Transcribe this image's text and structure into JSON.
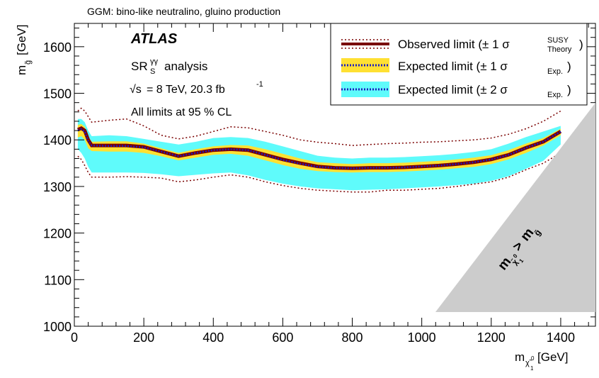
{
  "chart_data": {
    "type": "line",
    "title": "GGM: bino-like neutralino, gluino production",
    "xlabel": "m",
    "xlabel_sub": "χ̃",
    "xlabel_sub_sup": "0",
    "xlabel_sub_sub": "1",
    "xunit": "[GeV]",
    "ylabel": "m",
    "ylabel_sub": "g̃",
    "yunit": "[GeV]",
    "xlim": [
      0,
      1500
    ],
    "ylim": [
      1000,
      1650
    ],
    "xticks": [
      0,
      200,
      400,
      600,
      800,
      1000,
      1200,
      1400
    ],
    "yticks": [
      1000,
      1100,
      1200,
      1300,
      1400,
      1500,
      1600
    ],
    "annotations": {
      "experiment": "ATLAS",
      "analysis_base": "SR",
      "analysis_sup": "γγ",
      "analysis_sub": "S",
      "analysis_rest": "analysis",
      "sqrt": "√s",
      "energy": "= 8 TeV, 20.3 fb",
      "lumi_sup": "-1",
      "cl": "All limits at 95 % CL",
      "excluded_region_main": "m",
      "excluded_region_sub": "χ̃",
      "excluded_region_sub_sup": "0",
      "excluded_region_sub_sub": "1",
      "excluded_region_op": ">",
      "excluded_region_rhs": "m",
      "excluded_region_rhs_sub": "g̃"
    },
    "legend": {
      "placement": "top-right",
      "entries": [
        {
          "text": "Observed limit (± 1 σ",
          "sup": "SUSY",
          "sub": "Theory",
          "close": ")"
        },
        {
          "text": "Expected limit (± 1 σ",
          "sub": "Exp.",
          "close": ")"
        },
        {
          "text": "Expected limit (± 2 σ",
          "sub": "Exp.",
          "close": ")"
        }
      ]
    },
    "colors": {
      "observed": "#7a0000",
      "expected_line": "#1c1cbf",
      "band_1sigma": "#ffe033",
      "band_2sigma": "#5ffbfb",
      "excluded": "#cccccc"
    },
    "x": [
      10,
      20,
      30,
      40,
      50,
      100,
      150,
      200,
      250,
      300,
      350,
      400,
      450,
      500,
      550,
      600,
      650,
      700,
      750,
      800,
      850,
      900,
      950,
      1000,
      1050,
      1100,
      1150,
      1200,
      1250,
      1300,
      1350,
      1400
    ],
    "series": [
      {
        "name": "Observed limit",
        "role": "observed",
        "values": [
          1422,
          1425,
          1420,
          1400,
          1388,
          1388,
          1388,
          1385,
          1375,
          1365,
          1372,
          1378,
          1380,
          1378,
          1368,
          1358,
          1350,
          1343,
          1340,
          1339,
          1340,
          1340,
          1341,
          1343,
          1345,
          1348,
          1352,
          1358,
          1368,
          1383,
          1396,
          1418
        ]
      },
      {
        "name": "Observed +1σ theory",
        "role": "theory_up",
        "values": [
          1462,
          1468,
          1462,
          1450,
          1438,
          1442,
          1445,
          1430,
          1410,
          1402,
          1408,
          1418,
          1428,
          1426,
          1418,
          1410,
          1400,
          1395,
          1392,
          1388,
          1390,
          1392,
          1393,
          1395,
          1396,
          1398,
          1400,
          1404,
          1412,
          1424,
          1440,
          1462
        ]
      },
      {
        "name": "Observed -1σ theory",
        "role": "theory_down",
        "values": [
          1365,
          1358,
          1345,
          1330,
          1320,
          1320,
          1321,
          1320,
          1318,
          1310,
          1314,
          1320,
          1325,
          1320,
          1310,
          1302,
          1296,
          1292,
          1290,
          1288,
          1288,
          1292,
          1292,
          1294,
          1296,
          1300,
          1305,
          1310,
          1320,
          1336,
          1350,
          1372
        ]
      },
      {
        "name": "Expected limit",
        "role": "expected",
        "values": [
          1420,
          1423,
          1418,
          1398,
          1388,
          1387,
          1387,
          1384,
          1375,
          1365,
          1372,
          1378,
          1380,
          1378,
          1368,
          1357,
          1349,
          1342,
          1340,
          1339,
          1340,
          1340,
          1341,
          1343,
          1345,
          1348,
          1352,
          1358,
          1368,
          1383,
          1396,
          1418
        ]
      },
      {
        "name": "Expected +1σ",
        "role": "band1_up",
        "values": [
          1432,
          1434,
          1428,
          1408,
          1396,
          1397,
          1397,
          1392,
          1382,
          1372,
          1380,
          1386,
          1389,
          1388,
          1380,
          1370,
          1360,
          1352,
          1350,
          1348,
          1350,
          1350,
          1351,
          1353,
          1355,
          1358,
          1362,
          1367,
          1378,
          1392,
          1404,
          1424
        ]
      },
      {
        "name": "Expected -1σ",
        "role": "band1_down",
        "values": [
          1405,
          1408,
          1400,
          1382,
          1376,
          1375,
          1375,
          1372,
          1365,
          1356,
          1362,
          1368,
          1370,
          1366,
          1356,
          1346,
          1338,
          1333,
          1331,
          1330,
          1331,
          1331,
          1332,
          1334,
          1336,
          1339,
          1342,
          1348,
          1358,
          1372,
          1388,
          1410
        ]
      },
      {
        "name": "Expected +2σ",
        "role": "band2_up",
        "values": [
          1445,
          1445,
          1438,
          1420,
          1408,
          1410,
          1408,
          1402,
          1396,
          1390,
          1396,
          1404,
          1406,
          1404,
          1396,
          1386,
          1376,
          1366,
          1362,
          1360,
          1362,
          1362,
          1363,
          1365,
          1367,
          1370,
          1374,
          1380,
          1392,
          1406,
          1418,
          1430
        ]
      },
      {
        "name": "Expected -2σ",
        "role": "band2_down",
        "values": [
          1380,
          1372,
          1360,
          1342,
          1330,
          1330,
          1330,
          1329,
          1326,
          1322,
          1325,
          1328,
          1330,
          1324,
          1314,
          1306,
          1300,
          1296,
          1294,
          1292,
          1293,
          1294,
          1296,
          1298,
          1300,
          1303,
          1306,
          1312,
          1322,
          1338,
          1355,
          1390
        ]
      }
    ]
  }
}
